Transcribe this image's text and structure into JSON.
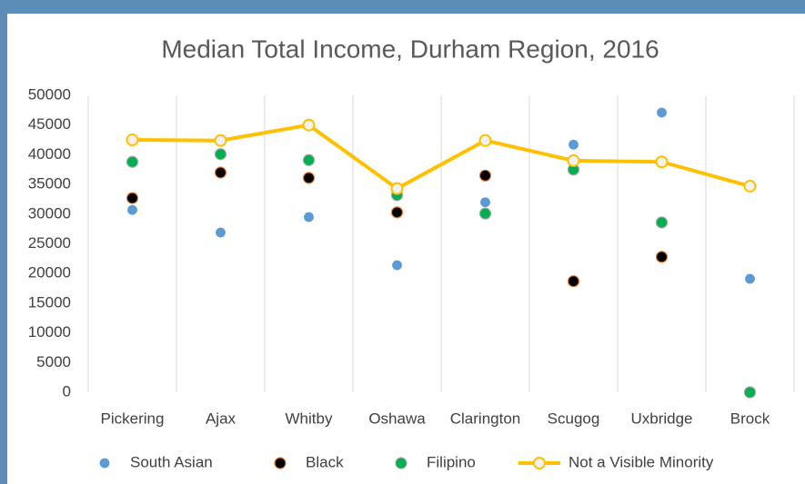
{
  "chart_data": {
    "type": "line",
    "title": "Median Total Income, Durham Region, 2016",
    "categories": [
      "Pickering",
      "Ajax",
      "Whitby",
      "Oshawa",
      "Clarington",
      "Scugog",
      "Uxbridge",
      "Brock"
    ],
    "series": [
      {
        "name": "South Asian",
        "kind": "scatter",
        "color": "#5b9bd5",
        "values": [
          30700,
          26900,
          29500,
          21400,
          32000,
          41700,
          47100,
          19100
        ]
      },
      {
        "name": "Black",
        "kind": "scatter",
        "color": "#000000",
        "values": [
          32700,
          37000,
          36100,
          30300,
          36500,
          18700,
          22800,
          0
        ]
      },
      {
        "name": "Filipino",
        "kind": "scatter",
        "color": "#00b050",
        "values": [
          38800,
          40100,
          39100,
          33200,
          30100,
          37500,
          28600,
          0
        ]
      },
      {
        "name": "Not a Visible Minority",
        "kind": "line",
        "color": "#ffc000",
        "values": [
          42500,
          42400,
          45000,
          34300,
          42400,
          39000,
          38800,
          34700
        ]
      }
    ],
    "ylim": [
      0,
      50000
    ],
    "yticks": [
      0,
      5000,
      10000,
      15000,
      20000,
      25000,
      30000,
      35000,
      40000,
      45000,
      50000
    ],
    "grid": "x",
    "legend": "bottom"
  }
}
